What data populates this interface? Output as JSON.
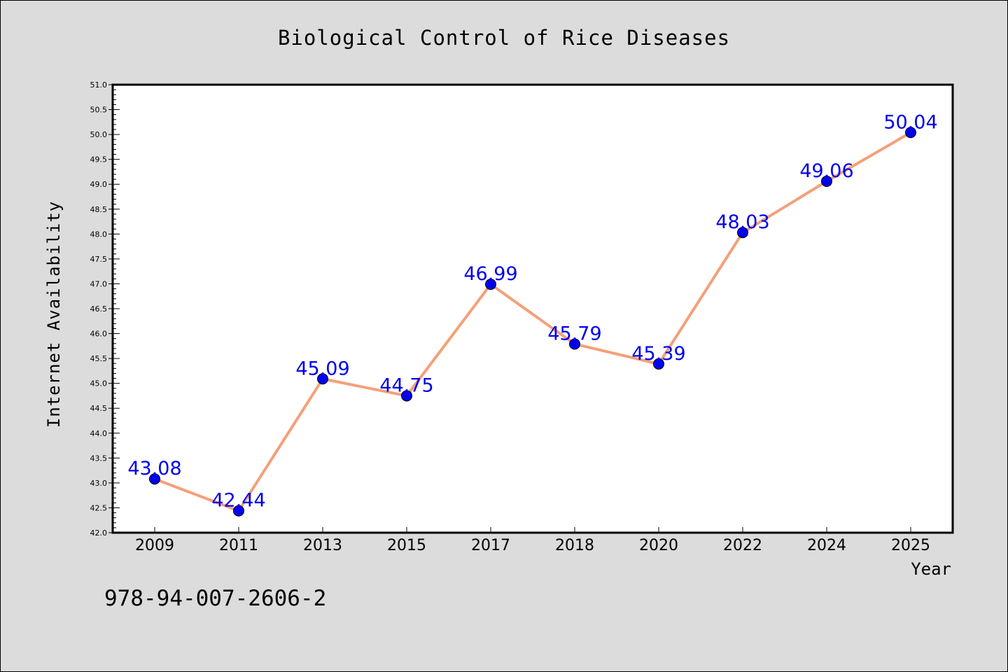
{
  "chart_data": {
    "type": "line",
    "title": "Biological Control of Rice Diseases",
    "xlabel": "Year",
    "ylabel": "Internet Availability",
    "categories": [
      "2009",
      "2011",
      "2013",
      "2015",
      "2017",
      "2018",
      "2020",
      "2022",
      "2024",
      "2025"
    ],
    "series": [
      {
        "values": [
          43.08,
          42.44,
          45.09,
          44.75,
          46.99,
          45.79,
          45.39,
          48.03,
          49.06,
          50.04
        ],
        "data_labels": [
          "43.08",
          "42.44",
          "45.09",
          "44.75",
          "46.99",
          "45.79",
          "45.39",
          "48.03",
          "49.06",
          "50.04"
        ],
        "line_color": "#f4a07a",
        "marker_color": "#0000ee"
      }
    ],
    "ylim": [
      42.0,
      51.0
    ],
    "y_ticks": [
      "42.0",
      "42.5",
      "43.0",
      "43.5",
      "44.0",
      "44.5",
      "45.0",
      "45.5",
      "46.0",
      "46.5",
      "47.0",
      "47.5",
      "48.0",
      "48.5",
      "49.0",
      "49.5",
      "50.0",
      "50.5",
      "51.0"
    ],
    "grid": false,
    "legend": "none",
    "label_color": "#0000ee"
  },
  "footer": {
    "isbn": "978-94-007-2606-2"
  }
}
